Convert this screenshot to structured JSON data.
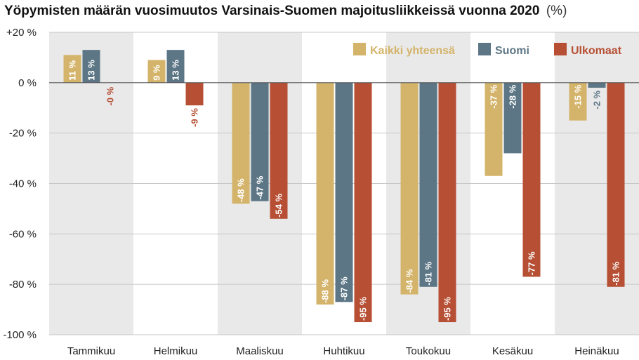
{
  "chart_data": {
    "type": "bar",
    "title": "Yöpymisten määrän vuosimuutos Varsinais-Suomen majoitusliikkeissä vuonna 2020",
    "title_unit": "(%)",
    "xlabel": "",
    "ylabel": "",
    "ylim": [
      -100,
      20
    ],
    "yticks": [
      20,
      0,
      -20,
      -40,
      -60,
      -80,
      -100
    ],
    "ytick_labels": [
      "+20 %",
      "0 %",
      "-20 %",
      "-40 %",
      "-60 %",
      "-80 %",
      "-100 %"
    ],
    "grid": true,
    "alternating_bands": true,
    "legend_position": "top-right",
    "categories": [
      "Tammikuu",
      "Helmikuu",
      "Maaliskuu",
      "Huhtikuu",
      "Toukokuu",
      "Kesäkuu",
      "Heinäkuu"
    ],
    "series": [
      {
        "name": "Kaikki yhteensä",
        "color": "#d4b46a",
        "values": [
          11,
          9,
          -48,
          -88,
          -84,
          -37,
          -15
        ],
        "labels": [
          "11 %",
          "9 %",
          "-48 %",
          "-88 %",
          "-84 %",
          "-37 %",
          "-15 %"
        ]
      },
      {
        "name": "Suomi",
        "color": "#5c7685",
        "values": [
          13,
          13,
          -47,
          -87,
          -81,
          -28,
          -2
        ],
        "labels": [
          "13 %",
          "13 %",
          "-47 %",
          "-87 %",
          "-81 %",
          "-28 %",
          "-2 %"
        ]
      },
      {
        "name": "Ulkomaat",
        "color": "#b64f34",
        "values": [
          -0.3,
          -9,
          -54,
          -95,
          -95,
          -77,
          -81
        ],
        "labels": [
          "-0 %",
          "-9 %",
          "-54 %",
          "-95 %",
          "-95 %",
          "-77 %",
          "-81 %"
        ]
      }
    ]
  }
}
